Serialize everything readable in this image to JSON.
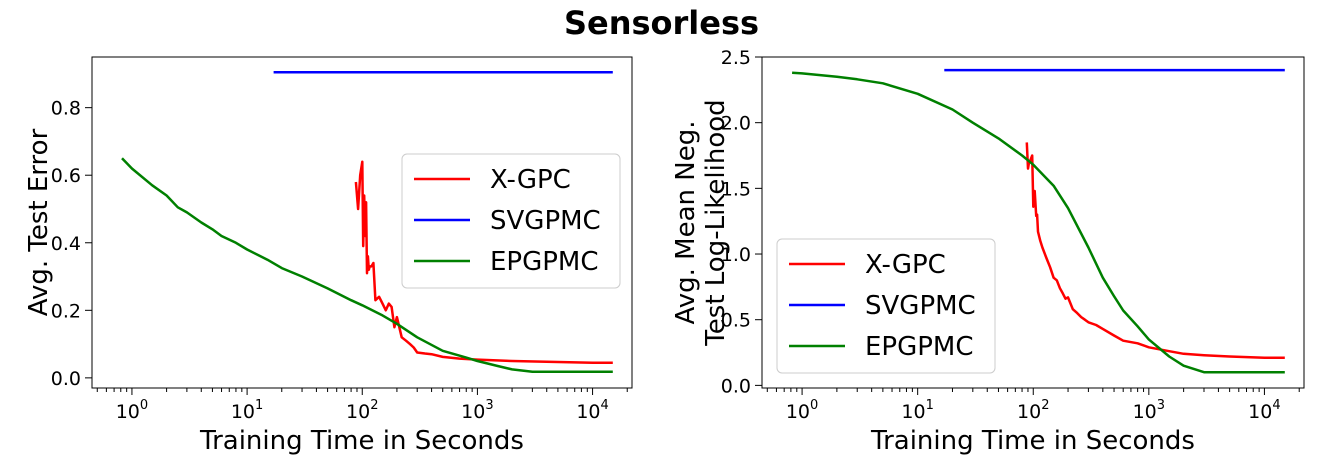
{
  "figure": {
    "title": "Sensorless"
  },
  "chart_data": [
    {
      "type": "line",
      "xlabel": "Training Time in Seconds",
      "ylabel": [
        "Avg. Test Error"
      ],
      "xscale": "log",
      "xlim": [
        0.45,
        22000
      ],
      "ylim": [
        -0.03,
        0.95
      ],
      "yticks": [
        0.0,
        0.2,
        0.4,
        0.6,
        0.8
      ],
      "ytick_labels": [
        "0.0",
        "0.2",
        "0.4",
        "0.6",
        "0.8"
      ],
      "xticks": [
        1,
        10,
        100,
        1000,
        10000
      ],
      "xtick_labels": [
        [
          "10",
          "0"
        ],
        [
          "10",
          "1"
        ],
        [
          "10",
          "2"
        ],
        [
          "10",
          "3"
        ],
        [
          "10",
          "4"
        ]
      ],
      "legend_position": "center-right",
      "series": [
        {
          "name": "X-GPC",
          "color": "#ff0000",
          "x": [
            88,
            92,
            96,
            100,
            102,
            104,
            106,
            108,
            110,
            112,
            114,
            116,
            120,
            125,
            130,
            140,
            150,
            160,
            170,
            180,
            190,
            200,
            220,
            240,
            260,
            280,
            300,
            350,
            400,
            500,
            700,
            1000,
            2000,
            5000,
            10000,
            15000
          ],
          "y": [
            0.58,
            0.5,
            0.6,
            0.64,
            0.39,
            0.54,
            0.42,
            0.52,
            0.31,
            0.36,
            0.32,
            0.33,
            0.33,
            0.34,
            0.23,
            0.24,
            0.22,
            0.2,
            0.22,
            0.21,
            0.15,
            0.18,
            0.12,
            0.11,
            0.1,
            0.09,
            0.075,
            0.072,
            0.07,
            0.062,
            0.057,
            0.054,
            0.05,
            0.047,
            0.045,
            0.045
          ]
        },
        {
          "name": "SVGPMC",
          "color": "#0000ff",
          "x": [
            17,
            15000
          ],
          "y": [
            0.905,
            0.905
          ]
        },
        {
          "name": "EPGPMC",
          "color": "#008000",
          "x": [
            0.82,
            1,
            1.5,
            2,
            2.5,
            3,
            4,
            5,
            6,
            8,
            10,
            15,
            20,
            30,
            50,
            80,
            100,
            150,
            200,
            300,
            500,
            800,
            1000,
            1500,
            2000,
            3000,
            5000,
            10000,
            15000
          ],
          "y": [
            0.65,
            0.62,
            0.57,
            0.54,
            0.505,
            0.49,
            0.46,
            0.44,
            0.42,
            0.4,
            0.38,
            0.35,
            0.325,
            0.3,
            0.265,
            0.23,
            0.215,
            0.185,
            0.16,
            0.12,
            0.08,
            0.06,
            0.05,
            0.035,
            0.025,
            0.018,
            0.018,
            0.018,
            0.018
          ]
        }
      ]
    },
    {
      "type": "line",
      "xlabel": "Training Time in Seconds",
      "ylabel": [
        "Avg. Mean Neg.",
        "Test Log-Likelihood"
      ],
      "xscale": "log",
      "xlim": [
        0.45,
        22000
      ],
      "ylim": [
        -0.02,
        2.5
      ],
      "yticks": [
        0.0,
        0.5,
        1.0,
        1.5,
        2.0,
        2.5
      ],
      "ytick_labels": [
        "0.0",
        "0.5",
        "1.0",
        "1.5",
        "2.0",
        "2.5"
      ],
      "xticks": [
        1,
        10,
        100,
        1000,
        10000
      ],
      "xtick_labels": [
        [
          "10",
          "0"
        ],
        [
          "10",
          "1"
        ],
        [
          "10",
          "2"
        ],
        [
          "10",
          "3"
        ],
        [
          "10",
          "4"
        ]
      ],
      "legend_position": "lower-left",
      "series": [
        {
          "name": "X-GPC",
          "color": "#ff0000",
          "x": [
            88,
            90,
            92,
            95,
            98,
            100,
            103,
            106,
            108,
            110,
            115,
            120,
            130,
            140,
            150,
            160,
            170,
            180,
            190,
            200,
            220,
            240,
            260,
            280,
            300,
            350,
            400,
            500,
            600,
            800,
            1000,
            1500,
            2000,
            3000,
            5000,
            10000,
            15000
          ],
          "y": [
            1.85,
            1.65,
            1.7,
            1.72,
            1.75,
            1.36,
            1.48,
            1.29,
            1.3,
            1.17,
            1.1,
            1.05,
            0.97,
            0.9,
            0.82,
            0.8,
            0.74,
            0.7,
            0.66,
            0.67,
            0.58,
            0.55,
            0.52,
            0.5,
            0.48,
            0.46,
            0.43,
            0.38,
            0.34,
            0.32,
            0.29,
            0.26,
            0.24,
            0.23,
            0.22,
            0.21,
            0.21
          ]
        },
        {
          "name": "SVGPMC",
          "color": "#0000ff",
          "x": [
            17,
            15000
          ],
          "y": [
            2.4,
            2.4
          ]
        },
        {
          "name": "EPGPMC",
          "color": "#008000",
          "x": [
            0.82,
            1,
            2,
            3,
            5,
            10,
            20,
            30,
            50,
            80,
            100,
            150,
            200,
            300,
            400,
            500,
            600,
            800,
            1000,
            1500,
            2000,
            3000,
            5000,
            10000,
            15000
          ],
          "y": [
            2.38,
            2.375,
            2.35,
            2.33,
            2.3,
            2.22,
            2.1,
            2.0,
            1.88,
            1.75,
            1.68,
            1.52,
            1.35,
            1.05,
            0.82,
            0.68,
            0.57,
            0.45,
            0.35,
            0.22,
            0.15,
            0.1,
            0.1,
            0.1,
            0.1
          ]
        }
      ]
    }
  ]
}
